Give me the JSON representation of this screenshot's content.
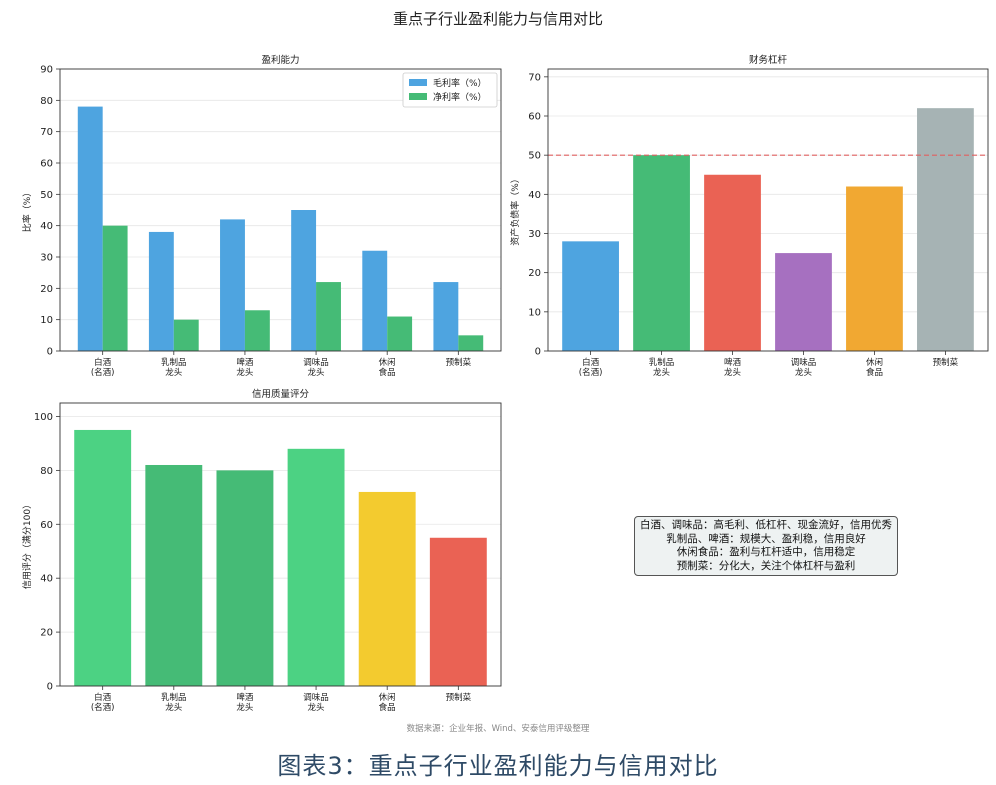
{
  "main_title": "重点子行业盈利能力与信用对比",
  "source": "数据来源：企业年报、Wind、安泰信用评级整理",
  "caption": "图表3：重点子行业盈利能力与信用对比",
  "note_lines": [
    "白酒、调味品：高毛利、低杠杆、现金流好，信用优秀",
    "乳制品、啤酒：规模大、盈利稳，信用良好",
    "休闲食品：盈利与杠杆适中，信用稳定",
    "预制菜：分化大，关注个体杠杆与盈利"
  ],
  "chart_data": [
    {
      "id": "profit",
      "type": "bar",
      "title": "盈利能力",
      "ylabel": "比率（%）",
      "ylim": [
        0,
        90
      ],
      "yticks": [
        0,
        10,
        20,
        30,
        40,
        50,
        60,
        70,
        80,
        90
      ],
      "categories": [
        [
          "白酒",
          "(名酒)"
        ],
        [
          "乳制品",
          "龙头"
        ],
        [
          "啤酒",
          "龙头"
        ],
        [
          "调味品",
          "龙头"
        ],
        [
          "休闲",
          "食品"
        ],
        [
          "预制菜"
        ]
      ],
      "series": [
        {
          "name": "毛利率（%）",
          "color": "#4ea4e0",
          "values": [
            78,
            38,
            42,
            45,
            32,
            22
          ]
        },
        {
          "name": "净利率（%）",
          "color": "#45bb76",
          "values": [
            40,
            10,
            13,
            22,
            11,
            5
          ]
        }
      ],
      "legend": "top-right",
      "grid": true
    },
    {
      "id": "leverage",
      "type": "bar",
      "title": "财务杠杆",
      "ylabel": "资产负债率（%）",
      "ylim": [
        0,
        72
      ],
      "yticks": [
        0,
        10,
        20,
        30,
        40,
        50,
        60,
        70
      ],
      "categories": [
        [
          "白酒",
          "(名酒)"
        ],
        [
          "乳制品",
          "龙头"
        ],
        [
          "啤酒",
          "龙头"
        ],
        [
          "调味品",
          "龙头"
        ],
        [
          "休闲",
          "食品"
        ],
        [
          "预制菜"
        ]
      ],
      "values": [
        28,
        50,
        45,
        25,
        42,
        62
      ],
      "colors": [
        "#4ea4e0",
        "#45bb76",
        "#ea6254",
        "#a670c0",
        "#f1a832",
        "#a6b3b4"
      ],
      "reference_line": {
        "y": 50,
        "color": "#e06060",
        "style": "dashed"
      },
      "grid": true
    },
    {
      "id": "credit",
      "type": "bar",
      "title": "信用质量评分",
      "ylabel": "信用评分（满分100）",
      "ylim": [
        0,
        105
      ],
      "yticks": [
        0,
        20,
        40,
        60,
        80,
        100
      ],
      "categories": [
        [
          "白酒",
          "(名酒)"
        ],
        [
          "乳制品",
          "龙头"
        ],
        [
          "啤酒",
          "龙头"
        ],
        [
          "调味品",
          "龙头"
        ],
        [
          "休闲",
          "食品"
        ],
        [
          "预制菜"
        ]
      ],
      "values": [
        95,
        82,
        80,
        88,
        72,
        55
      ],
      "colors": [
        "#4cd283",
        "#45bb76",
        "#45bb76",
        "#4cd283",
        "#f3cb2f",
        "#ea6254"
      ],
      "grid": true
    }
  ]
}
